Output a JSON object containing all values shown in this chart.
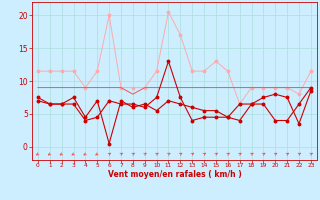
{
  "x": [
    0,
    1,
    2,
    3,
    4,
    5,
    6,
    7,
    8,
    9,
    10,
    11,
    12,
    13,
    14,
    15,
    16,
    17,
    18,
    19,
    20,
    21,
    22,
    23
  ],
  "line1_y": [
    7.5,
    6.5,
    6.5,
    6.5,
    4.0,
    4.5,
    7.0,
    6.5,
    6.5,
    6.0,
    7.5,
    13.0,
    7.5,
    4.0,
    4.5,
    4.5,
    4.5,
    4.0,
    6.5,
    6.5,
    4.0,
    4.0,
    6.5,
    9.0
  ],
  "line2_y": [
    7.0,
    6.5,
    6.5,
    7.5,
    4.5,
    7.0,
    0.5,
    7.0,
    6.0,
    6.5,
    5.5,
    7.0,
    6.5,
    6.0,
    5.5,
    5.5,
    4.5,
    6.5,
    6.5,
    7.5,
    8.0,
    7.5,
    3.5,
    8.5
  ],
  "line3_y": [
    11.5,
    11.5,
    11.5,
    11.5,
    9.0,
    11.5,
    20.0,
    9.0,
    9.0,
    9.0,
    11.5,
    20.5,
    17.0,
    11.5,
    11.5,
    13.0,
    11.5,
    6.5,
    9.0,
    9.0,
    9.0,
    9.0,
    8.0,
    11.5
  ],
  "line4_y": [
    9.0,
    9.0,
    9.0,
    9.0,
    9.0,
    9.0,
    9.0,
    9.0,
    8.0,
    9.0,
    9.0,
    9.0,
    9.0,
    9.0,
    9.0,
    9.0,
    9.0,
    9.0,
    9.0,
    9.0,
    9.0,
    9.0,
    9.0,
    9.0
  ],
  "color_dark_red": "#cc0000",
  "color_light_red": "#ffaaaa",
  "color_mid_red": "#ee5555",
  "bg_color": "#cceeff",
  "grid_color": "#aadddd",
  "xlabel": "Vent moyen/en rafales ( km/h )",
  "ylabel_ticks": [
    0,
    5,
    10,
    15,
    20
  ],
  "xlim": [
    -0.5,
    23.5
  ],
  "ylim": [
    -2.0,
    22
  ]
}
